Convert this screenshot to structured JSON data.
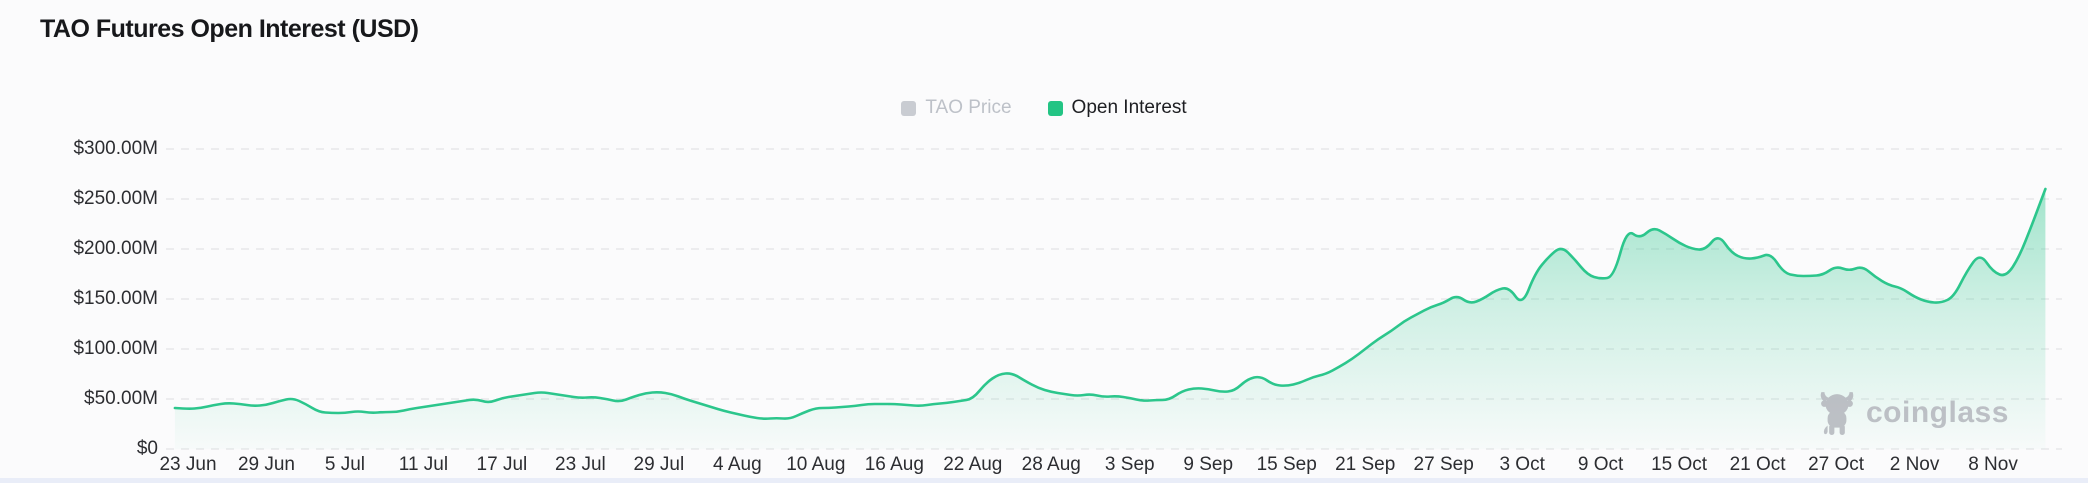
{
  "title": "TAO Futures Open Interest (USD)",
  "legend": {
    "items": [
      {
        "label": "TAO Price",
        "swatch_color": "#c9ccd2",
        "active": false
      },
      {
        "label": "Open Interest",
        "swatch_color": "#23c484",
        "active": true
      }
    ]
  },
  "watermark": {
    "label": "coinglass",
    "icon": "coinglass-bull"
  },
  "colors": {
    "line": "#2cc68c",
    "fill_top": "rgba(44,198,140,0.50)",
    "fill_mid": "rgba(44,198,140,0.20)",
    "fill_bottom": "rgba(44,198,140,0.02)",
    "grid": "#e7e8ea",
    "axis_text": "#2c2d31",
    "muted_text": "#bdc1c8",
    "title_text": "#17181b",
    "watermark_text": "#b7bac0",
    "bottom_strip": "#e9edf8"
  },
  "chart_data": {
    "type": "area",
    "title": "TAO Futures Open Interest (USD)",
    "legend_position": "top-center",
    "grid": "horizontal-dashed",
    "disabled_series": [
      "TAO Price"
    ],
    "x_tick_labels": [
      "23 Jun",
      "29 Jun",
      "5 Jul",
      "11 Jul",
      "17 Jul",
      "23 Jul",
      "29 Jul",
      "4 Aug",
      "10 Aug",
      "16 Aug",
      "22 Aug",
      "28 Aug",
      "3 Sep",
      "9 Sep",
      "15 Sep",
      "21 Sep",
      "27 Sep",
      "3 Oct",
      "9 Oct",
      "15 Oct",
      "21 Oct",
      "27 Oct",
      "2 Nov",
      "8 Nov"
    ],
    "x_tick_interval_days": 6,
    "y_tick_labels": [
      "$0",
      "$50.00M",
      "$100.00M",
      "$150.00M",
      "$200.00M",
      "$250.00M",
      "$300.00M"
    ],
    "ylim_musd": [
      0,
      300
    ],
    "series": [
      {
        "name": "Open Interest",
        "unit": "USD millions",
        "cadence": "daily",
        "first_point_day_offset_from_23jun": -1,
        "values_musd": [
          41,
          40,
          41,
          44,
          46,
          45,
          43,
          44,
          48,
          51,
          45,
          37,
          36,
          36,
          38,
          36,
          37,
          37,
          40,
          42,
          44,
          46,
          48,
          50,
          46,
          51,
          53,
          55,
          57,
          55,
          53,
          51,
          52,
          50,
          47,
          52,
          56,
          57,
          55,
          50,
          46,
          42,
          38,
          35,
          32,
          30,
          31,
          30,
          36,
          41,
          41,
          42,
          43,
          45,
          45,
          45,
          44,
          43,
          45,
          46,
          48,
          50,
          66,
          75,
          76,
          68,
          61,
          57,
          55,
          53,
          55,
          52,
          53,
          51,
          48,
          49,
          49,
          58,
          61,
          60,
          57,
          58,
          70,
          73,
          64,
          63,
          66,
          72,
          75,
          82,
          90,
          100,
          110,
          118,
          128,
          135,
          142,
          146,
          154,
          145,
          150,
          159,
          162,
          143,
          176,
          192,
          203,
          190,
          174,
          170,
          172,
          220,
          210,
          222,
          215,
          206,
          200,
          199,
          215,
          196,
          190,
          191,
          196,
          176,
          173,
          173,
          174,
          183,
          178,
          183,
          172,
          164,
          161,
          152,
          147,
          146,
          152,
          178,
          196,
          177,
          172,
          192,
          225,
          260
        ]
      }
    ]
  }
}
